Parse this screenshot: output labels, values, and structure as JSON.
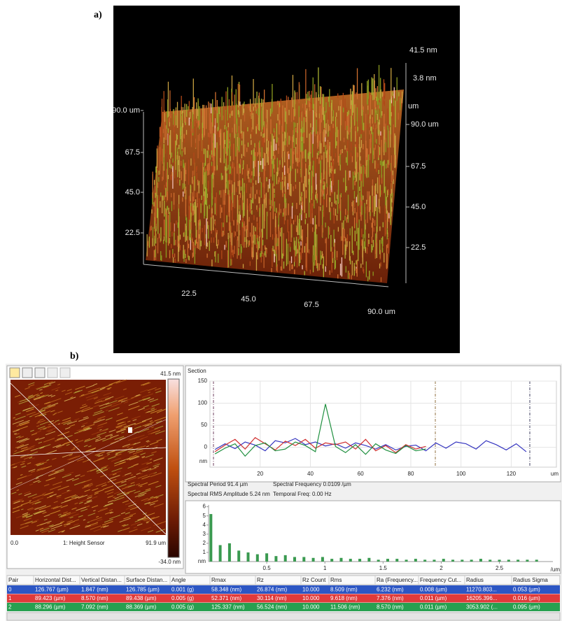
{
  "panel_a": {
    "label": "a)",
    "z_max": "41.5 nm",
    "z_mid": "3.8 nm",
    "z_unit": "um",
    "right_axis": [
      "90.0 um",
      "67.5",
      "45.0",
      "22.5"
    ],
    "left_axis": [
      "90.0 um",
      "67.5",
      "45.0",
      "22.5"
    ],
    "bottom_axis": [
      "22.5",
      "45.0",
      "67.5",
      "90.0 um"
    ]
  },
  "panel_b": {
    "label": "b)",
    "image": {
      "scale_max": "41.5 nm",
      "scale_min": "-34.0 nm",
      "x_start": "0.0",
      "channel": "1: Height Sensor",
      "x_end": "91.9 um"
    },
    "info": [
      "Spectral Period 91.4 µm",
      "Spectral Frequency 0.0109 /µm",
      "Spectral RMS Amplitude 5.24 nm",
      "Temporal Freq: 0.00 Hz"
    ]
  },
  "chart_data": [
    {
      "type": "line",
      "title": "Section",
      "y_unit": "nm",
      "x_unit": "um",
      "grid": true,
      "x": [
        2,
        6,
        10,
        14,
        18,
        22,
        26,
        30,
        34,
        38,
        42,
        46,
        50,
        54,
        58,
        62,
        66,
        70,
        74,
        78,
        82,
        86,
        90,
        94,
        98,
        102,
        106,
        110,
        114,
        118,
        122,
        126
      ],
      "series": [
        {
          "color": "#3535c0",
          "values": [
            -5,
            8,
            -3,
            12,
            5,
            -8,
            15,
            10,
            20,
            6,
            12,
            3,
            8,
            -2,
            10,
            4,
            -4,
            6,
            -6,
            2,
            5,
            -8,
            10,
            -2,
            12,
            8,
            -4,
            15,
            6,
            -6,
            8,
            -10
          ]
        },
        {
          "color": "#d03030",
          "values": [
            -10,
            5,
            18,
            -4,
            22,
            8,
            -6,
            14,
            4,
            18,
            -2,
            10,
            6,
            12,
            -4,
            18,
            -8,
            4,
            -12,
            6,
            -4,
            2,
            null,
            null,
            null,
            null,
            null,
            null,
            null,
            null,
            null,
            null
          ]
        },
        {
          "color": "#209040",
          "values": [
            -15,
            -2,
            8,
            -20,
            4,
            10,
            -8,
            -4,
            12,
            4,
            -10,
            98,
            2,
            -12,
            6,
            -16,
            8,
            -6,
            -14,
            4,
            -8,
            -4,
            null,
            null,
            null,
            null,
            null,
            null,
            null,
            null,
            null,
            null
          ]
        }
      ],
      "xlim": [
        0,
        138
      ],
      "ylim": [
        -45,
        150
      ],
      "xticks": [
        20,
        40,
        60,
        80,
        100,
        120
      ],
      "yticks": [
        0,
        50,
        100,
        150
      ]
    },
    {
      "type": "bar",
      "y_unit": "nm",
      "x_unit": "/um",
      "color": "#3a9a50",
      "x": [
        0.02,
        0.1,
        0.18,
        0.26,
        0.34,
        0.42,
        0.5,
        0.58,
        0.66,
        0.74,
        0.82,
        0.9,
        0.98,
        1.06,
        1.14,
        1.22,
        1.3,
        1.38,
        1.46,
        1.54,
        1.62,
        1.7,
        1.78,
        1.86,
        1.94,
        2.02,
        2.1,
        2.18,
        2.26,
        2.34,
        2.42,
        2.5,
        2.58,
        2.66,
        2.74,
        2.82
      ],
      "values": [
        5.2,
        1.8,
        2.0,
        1.2,
        1.0,
        0.8,
        0.9,
        0.6,
        0.7,
        0.5,
        0.5,
        0.4,
        0.5,
        0.3,
        0.4,
        0.3,
        0.3,
        0.4,
        0.2,
        0.3,
        0.3,
        0.2,
        0.3,
        0.2,
        0.2,
        0.3,
        0.2,
        0.2,
        0.2,
        0.3,
        0.2,
        0.2,
        0.2,
        0.2,
        0.2,
        0.2
      ],
      "xlim": [
        0,
        2.96
      ],
      "ylim": [
        0,
        6.2
      ],
      "xticks": [
        0.5,
        1,
        1.5,
        2,
        2.5
      ],
      "yticks": [
        1,
        2,
        3,
        4,
        5,
        6
      ]
    }
  ],
  "table": {
    "headers": [
      "Pair",
      "Horizontal Dist...",
      "Vertical Distan...",
      "Surface Distan...",
      "Angle",
      "Rmax",
      "Rz",
      "Rz Count",
      "Rms",
      "Ra (Frequency...",
      "Frequency Cut...",
      "Radius",
      "Radius Sigma"
    ],
    "row_colors": [
      "#2c56c4",
      "#e03a3a",
      "#27a050"
    ],
    "rows": [
      [
        "0",
        "126.767 (µm)",
        "1.847 (nm)",
        "126.785 (µm)",
        "0.001 (g)",
        "58.348 (nm)",
        "26.874 (nm)",
        "10.000",
        "8.509 (nm)",
        "6.232 (nm)",
        "0.008 (µm)",
        "11270.803...",
        "0.053 (µm)"
      ],
      [
        "1",
        "89.423 (µm)",
        "8.570 (nm)",
        "89.438 (µm)",
        "0.005 (g)",
        "52.371 (nm)",
        "30.114 (nm)",
        "10.000",
        "9.618 (nm)",
        "7.376 (nm)",
        "0.011 (µm)",
        "16205.396...",
        "0.016 (µm)"
      ],
      [
        "2",
        "88.296 (µm)",
        "7.092 (nm)",
        "88.369 (µm)",
        "0.005 (g)",
        "125.337 (nm)",
        "56.524 (nm)",
        "10.000",
        "11.506 (nm)",
        "8.570 (nm)",
        "0.011 (µm)",
        "3053.902 (...",
        "0.095 (µm)"
      ]
    ]
  }
}
